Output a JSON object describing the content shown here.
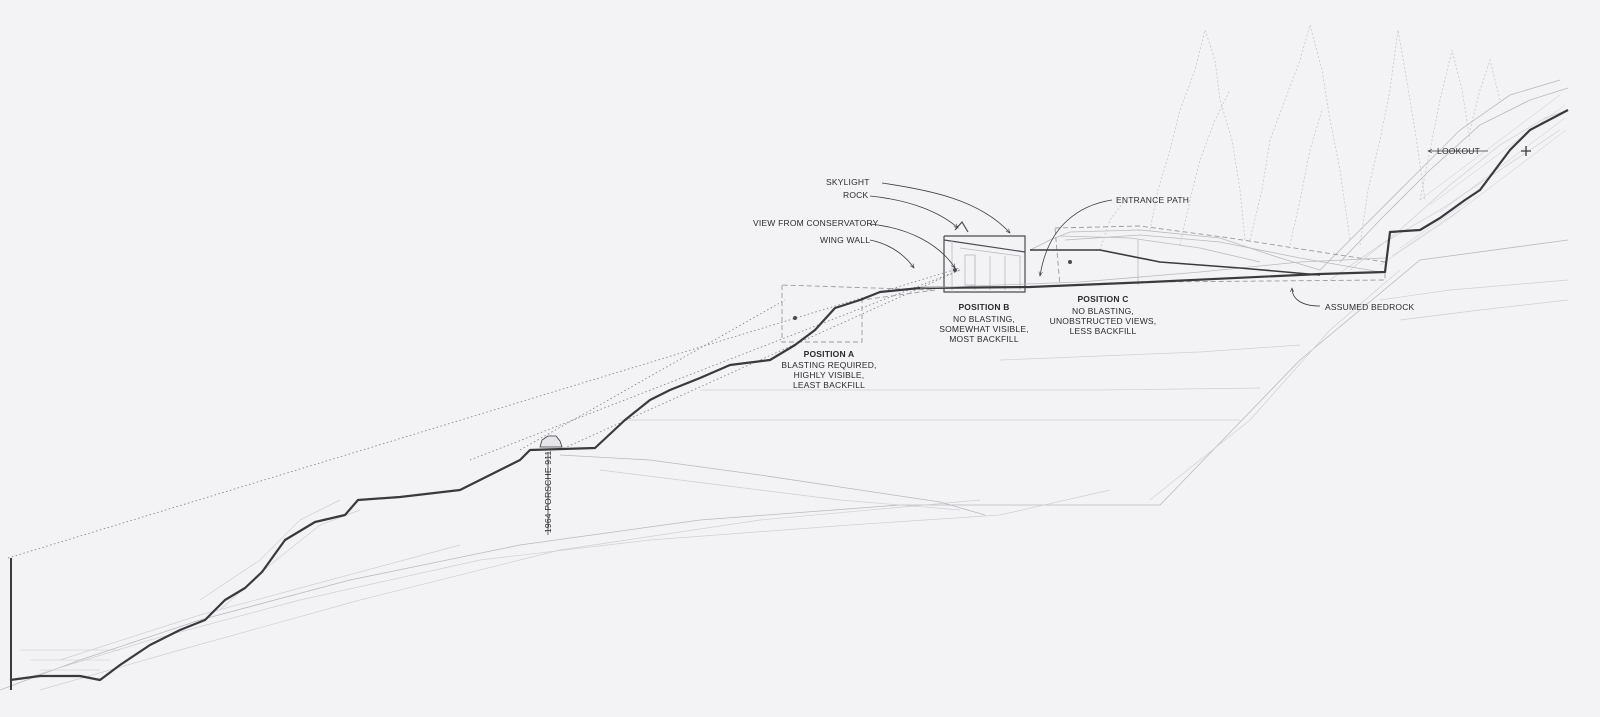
{
  "labels": {
    "skylight": "SKYLIGHT",
    "rock": "ROCK",
    "view_from_conservatory": "VIEW FROM CONSERVATORY",
    "wing_wall": "WING WALL",
    "entrance_path": "ENTRANCE PATH",
    "lookout": "LOOKOUT",
    "assumed_bedrock": "ASSUMED BEDROCK",
    "car": "1964 PORSCHE 911"
  },
  "positions": {
    "a": {
      "title": "POSITION A",
      "line1": "BLASTING REQUIRED,",
      "line2": "HIGHLY VISIBLE,",
      "line3": "LEAST BACKFILL"
    },
    "b": {
      "title": "POSITION B",
      "line1": "NO BLASTING,",
      "line2": "SOMEWHAT VISIBLE,",
      "line3": "MOST BACKFILL"
    },
    "c": {
      "title": "POSITION C",
      "line1": "NO BLASTING,",
      "line2": "UNOBSTRUCTED VIEWS,",
      "line3": "LESS BACKFILL"
    }
  },
  "colors": {
    "background": "#f3f3f6",
    "ground_line": "#3a3a3e",
    "text": "#2b2b2e"
  }
}
